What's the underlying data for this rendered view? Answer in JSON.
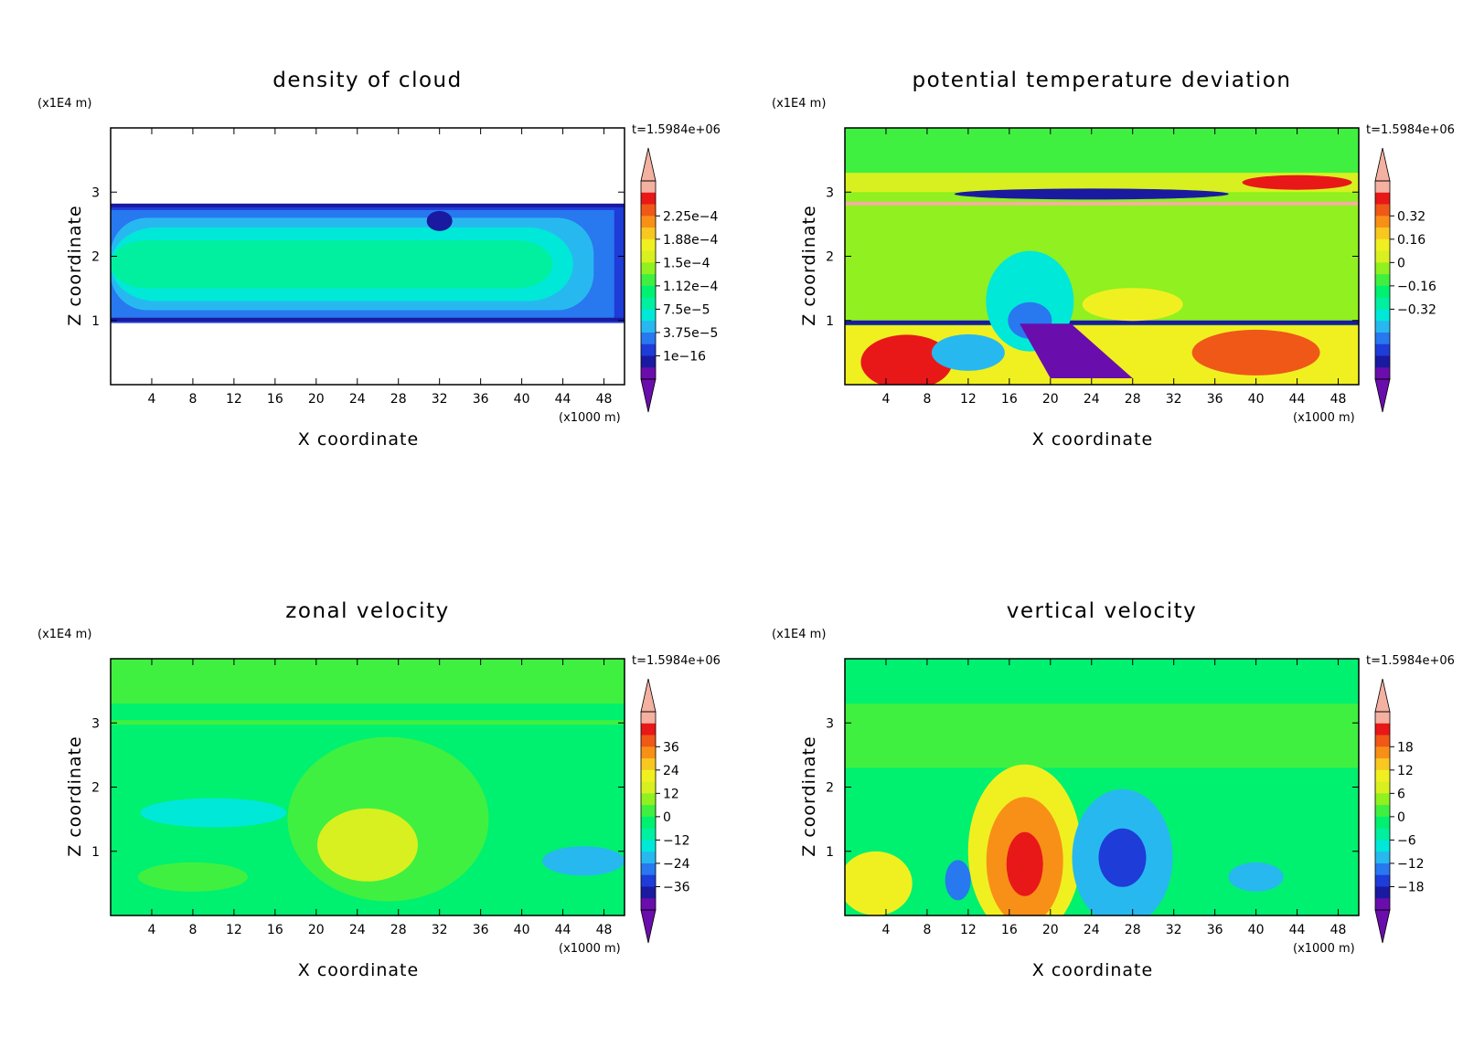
{
  "figure": {
    "time_label": "t=1.5984e+06",
    "y_unit": "(x1E4 m)",
    "x_unit": "(x1000 m)",
    "xlabel": "X coordinate",
    "ylabel": "Z coordinate"
  },
  "chart_data": [
    {
      "type": "heatmap",
      "title": "density of cloud",
      "xlabel": "X coordinate",
      "ylabel": "Z coordinate",
      "x_unit": "(x1000 m)",
      "y_unit": "(x1E4 m)",
      "annotation": "t=1.5984e+06",
      "xlim": [
        0,
        50
      ],
      "ylim": [
        0,
        4
      ],
      "x_ticks": [
        4,
        8,
        12,
        16,
        20,
        24,
        28,
        32,
        36,
        40,
        44,
        48
      ],
      "y_ticks": [
        1,
        2,
        3
      ],
      "colorbar_labels": [
        "2.25e-4",
        "1.88e-4",
        "1.5e-4",
        "1.12e-4",
        "7.5e-5",
        "3.75e-5",
        "1e-16"
      ],
      "colors": [
        "#6a0dad",
        "#1a1aa0",
        "#1e3cd8",
        "#2878f0",
        "#28b8f0",
        "#00e8d8",
        "#00f0a0",
        "#00f070",
        "#40f040",
        "#90f020",
        "#d8f020",
        "#f0f020",
        "#f8c820",
        "#f89018",
        "#f05818",
        "#e81818",
        "#f4b0a0"
      ],
      "fields": [
        {
          "value": "7.5e-5",
          "x0": 0,
          "x1": 50,
          "y0": 0.96,
          "y1": 2.82
        },
        {
          "value": "1.12e-4",
          "x0": 0,
          "x1": 48,
          "y0": 1.12,
          "y1": 2.65
        },
        {
          "value": "1.5e-4",
          "x0": 0,
          "x1": 46,
          "y0": 1.28,
          "y1": 2.5
        },
        {
          "value": "1.88e-4",
          "x0": 0,
          "x1": 44,
          "y0": 1.5,
          "y1": 2.3
        }
      ]
    },
    {
      "type": "heatmap",
      "title": "potential temperature deviation",
      "xlabel": "X coordinate",
      "ylabel": "Z coordinate",
      "x_unit": "(x1000 m)",
      "y_unit": "(x1E4 m)",
      "annotation": "t=1.5984e+06",
      "xlim": [
        0,
        50
      ],
      "ylim": [
        0,
        4
      ],
      "x_ticks": [
        4,
        8,
        12,
        16,
        20,
        24,
        28,
        32,
        36,
        40,
        44,
        48
      ],
      "y_ticks": [
        1,
        2,
        3
      ],
      "colorbar_labels": [
        "0.32",
        "0.16",
        "0",
        "-0.16",
        "-0.32"
      ],
      "colors": [
        "#6a0dad",
        "#1a1aa0",
        "#1e3cd8",
        "#2878f0",
        "#28b8f0",
        "#00e8d8",
        "#00f0a0",
        "#00f070",
        "#40f040",
        "#90f020",
        "#d8f020",
        "#f0f020",
        "#f8c820",
        "#f89018",
        "#f05818",
        "#e81818",
        "#f4b0a0"
      ],
      "fields": [
        {
          "value": "0.16",
          "x0": 0,
          "x1": 50,
          "y0": 0,
          "y1": 0.92
        },
        {
          "value": "-0.32",
          "x0": 16,
          "x1": 24,
          "y0": 0.05,
          "y1": 0.9
        },
        {
          "value": "-0.16",
          "x0": 14,
          "x1": 21,
          "y0": 0.9,
          "y1": 1.8
        },
        {
          "value": "0.16",
          "x0": 24,
          "x1": 32,
          "y0": 1,
          "y1": 1.5
        },
        {
          "value": "-0.32",
          "x0": 10,
          "x1": 44,
          "y0": 2.85,
          "y1": 3.05
        },
        {
          "value": "0.32",
          "x0": 38,
          "x1": 50,
          "y0": 3.05,
          "y1": 3.25
        }
      ]
    },
    {
      "type": "heatmap",
      "title": "zonal velocity",
      "xlabel": "X coordinate",
      "ylabel": "Z coordinate",
      "x_unit": "(x1000 m)",
      "y_unit": "(x1E4 m)",
      "annotation": "t=1.5984e+06",
      "xlim": [
        0,
        50
      ],
      "ylim": [
        0,
        4
      ],
      "x_ticks": [
        4,
        8,
        12,
        16,
        20,
        24,
        28,
        32,
        36,
        40,
        44,
        48
      ],
      "y_ticks": [
        1,
        2,
        3
      ],
      "colorbar_labels": [
        "36",
        "24",
        "12",
        "0",
        "-12",
        "-24",
        "-36"
      ],
      "colors": [
        "#6a0dad",
        "#1a1aa0",
        "#1e3cd8",
        "#2878f0",
        "#28b8f0",
        "#00e8d8",
        "#00f0a0",
        "#00f070",
        "#40f040",
        "#90f020",
        "#d8f020",
        "#f0f020",
        "#f8c820",
        "#f89018",
        "#f05818",
        "#e81818",
        "#f4b0a0"
      ],
      "fields": [
        {
          "value": "0",
          "x0": 0,
          "x1": 20,
          "y0": 3.2,
          "y1": 4
        },
        {
          "value": "0",
          "x0": 38,
          "x1": 50,
          "y0": 3,
          "y1": 4
        },
        {
          "value": "0",
          "x0": 16,
          "x1": 36,
          "y0": 0.5,
          "y1": 2.5
        },
        {
          "value": "12",
          "x0": 19,
          "x1": 30,
          "y0": 0.7,
          "y1": 1.85
        },
        {
          "value": "-12",
          "x0": 5,
          "x1": 17,
          "y0": 1.35,
          "y1": 1.8
        },
        {
          "value": "-12",
          "x0": 42,
          "x1": 50,
          "y0": 0.6,
          "y1": 1.1
        }
      ]
    },
    {
      "type": "heatmap",
      "title": "vertical velocity",
      "xlabel": "X coordinate",
      "ylabel": "Z coordinate",
      "x_unit": "(x1000 m)",
      "y_unit": "(x1E4 m)",
      "annotation": "t=1.5984e+06",
      "xlim": [
        0,
        50
      ],
      "ylim": [
        0,
        4
      ],
      "x_ticks": [
        4,
        8,
        12,
        16,
        20,
        24,
        28,
        32,
        36,
        40,
        44,
        48
      ],
      "y_ticks": [
        1,
        2,
        3
      ],
      "colorbar_labels": [
        "18",
        "12",
        "6",
        "0",
        "-6",
        "-12",
        "-18"
      ],
      "colors": [
        "#6a0dad",
        "#1a1aa0",
        "#1e3cd8",
        "#2878f0",
        "#28b8f0",
        "#00e8d8",
        "#00f0a0",
        "#00f070",
        "#40f040",
        "#90f020",
        "#d8f020",
        "#f0f020",
        "#f8c820",
        "#f89018",
        "#f05818",
        "#e81818",
        "#f4b0a0"
      ],
      "fields": [
        {
          "value": "0",
          "x0": 0,
          "x1": 50,
          "y0": 2.3,
          "y1": 3.3
        },
        {
          "value": "6",
          "x0": 12,
          "x1": 23,
          "y0": 0.05,
          "y1": 2
        },
        {
          "value": "12",
          "x0": 15,
          "x1": 20,
          "y0": 0.2,
          "y1": 1.6
        },
        {
          "value": "18",
          "x0": 16.5,
          "x1": 19,
          "y0": 0.5,
          "y1": 1.1
        },
        {
          "value": "-6",
          "x0": 23,
          "x1": 32,
          "y0": 0.2,
          "y1": 1.6
        },
        {
          "value": "-12",
          "x0": 24.5,
          "x1": 29.5,
          "y0": 0.6,
          "y1": 1.3
        },
        {
          "value": "6",
          "x0": 0,
          "x1": 7,
          "y0": 0.05,
          "y1": 0.9
        }
      ]
    }
  ]
}
